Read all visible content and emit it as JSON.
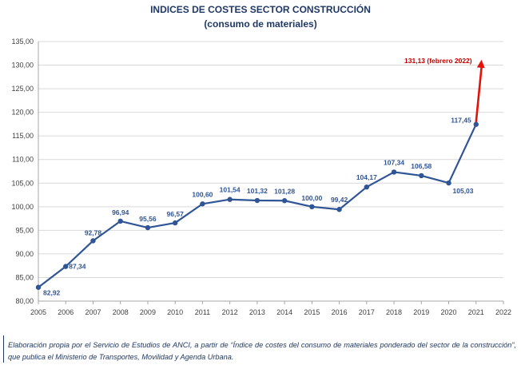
{
  "title": "INDICES DE COSTES SECTOR CONSTRUCCIÓN",
  "subtitle": "(consumo de materiales)",
  "caption": "Elaboración propia por el Servicio de Estudios de ANCI, a partir de “Índice de costes del consumo de materiales ponderado del sector de la construcción”, que publica el Ministerio de Transportes, Movilidad y Agenda Urbana.",
  "colors": {
    "series": "#2F5597",
    "marker": "#2F5597",
    "arrow": "#E3120B",
    "annotation": "#C00000",
    "text": "#1F3864",
    "grid": "#D9D9D9"
  },
  "chart_data": {
    "type": "line",
    "x": [
      2005,
      2006,
      2007,
      2008,
      2009,
      2010,
      2011,
      2012,
      2013,
      2014,
      2015,
      2016,
      2017,
      2018,
      2019,
      2020,
      2021
    ],
    "series": [
      {
        "values": [
          82.92,
          87.34,
          92.78,
          96.94,
          95.56,
          96.57,
          100.6,
          101.54,
          101.32,
          101.28,
          100.0,
          99.42,
          104.17,
          107.34,
          106.58,
          105.03,
          117.45
        ]
      }
    ],
    "data_labels": [
      "82,92",
      "87,34",
      "92,78",
      "96,94",
      "95,56",
      "96,57",
      "100,60",
      "101,54",
      "101,32",
      "101,28",
      "100,00",
      "99,42",
      "104,17",
      "107,34",
      "106,58",
      "105,03",
      "117,45"
    ],
    "xticks": [
      "2005",
      "2006",
      "2007",
      "2008",
      "2009",
      "2010",
      "2011",
      "2012",
      "2013",
      "2014",
      "2015",
      "2016",
      "2017",
      "2018",
      "2019",
      "2020",
      "2021",
      "2022"
    ],
    "yticks": [
      "80,00",
      "85,00",
      "90,00",
      "95,00",
      "100,00",
      "105,00",
      "110,00",
      "115,00",
      "120,00",
      "125,00",
      "130,00",
      "135,00"
    ],
    "xlim": [
      2005,
      2022
    ],
    "ylim": [
      80,
      135
    ],
    "grid": "horizontal",
    "annotation": {
      "text": "131,13 (febrero 2022)",
      "value": 131.13,
      "x": 2021.2
    }
  }
}
